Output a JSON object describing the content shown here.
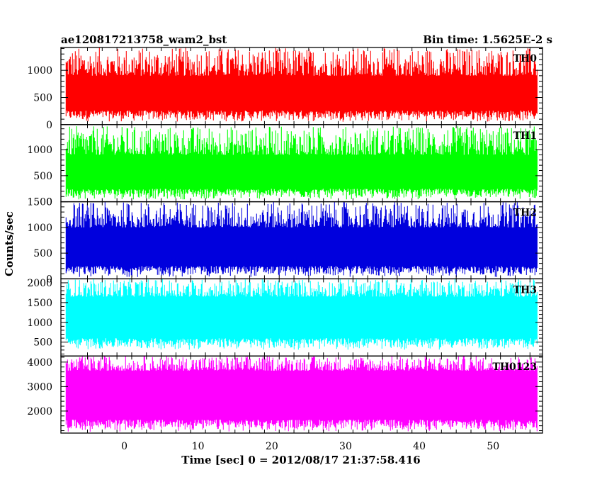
{
  "header": {
    "left_title": "ae120817213758_wam2_bst",
    "right_title": "Bin time: 1.5625E-2 s"
  },
  "chart_data": {
    "type": "line",
    "xlabel": "Time [sec] 0 = 2012/08/17 21:37:58.416",
    "ylabel": "Counts/sec",
    "xlim": [
      -8.6,
      56.7
    ],
    "x_ticks": [
      0,
      10,
      20,
      30,
      40,
      50
    ],
    "x_tick_labels": [
      "0",
      "10",
      "20",
      "30",
      "40",
      "50"
    ],
    "data_range_x": [
      -7.9,
      56.0
    ],
    "panels": [
      {
        "name": "TH0",
        "color": "#ff0000",
        "ylim": [
          0,
          1420
        ],
        "y_ticks": [
          0,
          500,
          1000
        ],
        "y_tick_labels": [
          "0",
          "500",
          "1000"
        ],
        "mean": 630,
        "low_band": [
          50,
          260
        ],
        "high_band": [
          900,
          1420
        ]
      },
      {
        "name": "TH1",
        "color": "#00ff00",
        "ylim": [
          0,
          1480
        ],
        "y_ticks": [
          0,
          500,
          1000
        ],
        "y_tick_labels": [
          "0",
          "500",
          "1000"
        ],
        "mean": 620,
        "low_band": [
          40,
          250
        ],
        "high_band": [
          900,
          1450
        ]
      },
      {
        "name": "TH2",
        "color": "#0000dd",
        "ylim": [
          0,
          1500
        ],
        "y_ticks": [
          0,
          500,
          1000,
          1500
        ],
        "y_tick_labels": [
          "0",
          "500",
          "1000",
          "1500"
        ],
        "mean": 700,
        "low_band": [
          30,
          250
        ],
        "high_band": [
          1000,
          1500
        ]
      },
      {
        "name": "TH3",
        "color": "#00ffff",
        "ylim": [
          150,
          2100
        ],
        "y_ticks": [
          500,
          1000,
          1500,
          2000
        ],
        "y_tick_labels": [
          "500",
          "1000",
          "1500",
          "2000"
        ],
        "mean": 1150,
        "low_band": [
          300,
          600
        ],
        "high_band": [
          1650,
          2100
        ]
      },
      {
        "name": "TH0123",
        "color": "#ff00ff",
        "ylim": [
          1100,
          4250
        ],
        "y_ticks": [
          2000,
          3000,
          4000
        ],
        "y_tick_labels": [
          "2000",
          "3000",
          "4000"
        ],
        "mean": 2750,
        "low_band": [
          1150,
          1650
        ],
        "high_band": [
          3650,
          4250
        ]
      }
    ]
  }
}
